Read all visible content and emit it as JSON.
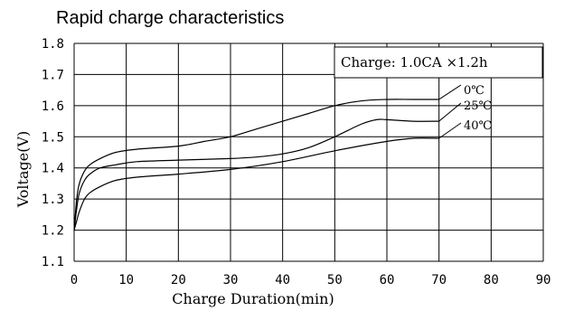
{
  "chart_data": {
    "type": "line",
    "title": "Rapid charge characteristics",
    "xlabel": "Charge Duration(min)",
    "ylabel": "Voltage(V)",
    "xlim": [
      0,
      90
    ],
    "ylim": [
      1.1,
      1.8
    ],
    "x_ticks": [
      "0",
      "10",
      "20",
      "30",
      "40",
      "50",
      "60",
      "70",
      "80",
      "90"
    ],
    "y_ticks": [
      "1.1",
      "1.2",
      "1.3",
      "1.4",
      "1.5",
      "1.6",
      "1.7",
      "1.8"
    ],
    "grid": true,
    "annotation": "Charge: 1.0CA ×1.2h",
    "series": [
      {
        "name": "0℃",
        "x": [
          0,
          0.5,
          1,
          2,
          3,
          5,
          8,
          12,
          20,
          25,
          30,
          35,
          40,
          45,
          50,
          55,
          60,
          65,
          70
        ],
        "y": [
          1.2,
          1.3,
          1.35,
          1.39,
          1.41,
          1.43,
          1.45,
          1.46,
          1.47,
          1.485,
          1.5,
          1.525,
          1.55,
          1.575,
          1.6,
          1.615,
          1.62,
          1.62,
          1.62
        ]
      },
      {
        "name": "25℃",
        "x": [
          0,
          0.5,
          1,
          2,
          3,
          5,
          8,
          12,
          20,
          30,
          35,
          40,
          45,
          50,
          55,
          58,
          60,
          65,
          70
        ],
        "y": [
          1.2,
          1.27,
          1.32,
          1.36,
          1.38,
          1.4,
          1.41,
          1.42,
          1.425,
          1.43,
          1.435,
          1.445,
          1.465,
          1.5,
          1.54,
          1.555,
          1.555,
          1.55,
          1.55
        ]
      },
      {
        "name": "40℃",
        "x": [
          0,
          0.5,
          1,
          2,
          3,
          5,
          8,
          12,
          20,
          30,
          40,
          50,
          60,
          65,
          70
        ],
        "y": [
          1.2,
          1.23,
          1.26,
          1.3,
          1.32,
          1.34,
          1.36,
          1.37,
          1.38,
          1.395,
          1.42,
          1.455,
          1.485,
          1.495,
          1.495
        ]
      }
    ]
  }
}
